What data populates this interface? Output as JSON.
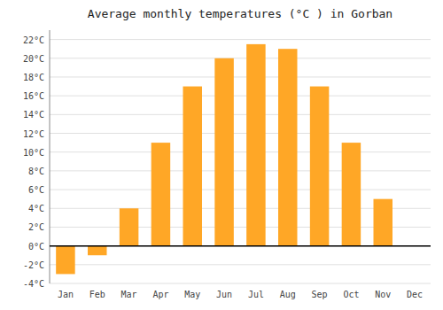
{
  "chart_data": {
    "type": "bar",
    "title": "Average monthly temperatures (°C ) in Gorban",
    "categories": [
      "Jan",
      "Feb",
      "Mar",
      "Apr",
      "May",
      "Jun",
      "Jul",
      "Aug",
      "Sep",
      "Oct",
      "Nov",
      "Dec"
    ],
    "values": [
      -3,
      -1,
      4,
      11,
      17,
      20,
      21.5,
      21,
      17,
      11,
      5,
      0
    ],
    "color": "#FFA726",
    "ylim": [
      -4,
      23
    ],
    "yticks": [
      {
        "value": -4,
        "label": "-4°C"
      },
      {
        "value": -2,
        "label": "-2°C"
      },
      {
        "value": 0,
        "label": "0°C"
      },
      {
        "value": 2,
        "label": "2°C"
      },
      {
        "value": 4,
        "label": "4°C"
      },
      {
        "value": 6,
        "label": "6°C"
      },
      {
        "value": 8,
        "label": "8°C"
      },
      {
        "value": 10,
        "label": "10°C"
      },
      {
        "value": 12,
        "label": "12°C"
      },
      {
        "value": 14,
        "label": "14°C"
      },
      {
        "value": 16,
        "label": "16°C"
      },
      {
        "value": 18,
        "label": "18°C"
      },
      {
        "value": 20,
        "label": "20°C"
      },
      {
        "value": 22,
        "label": "22°C"
      }
    ],
    "grid": true
  }
}
